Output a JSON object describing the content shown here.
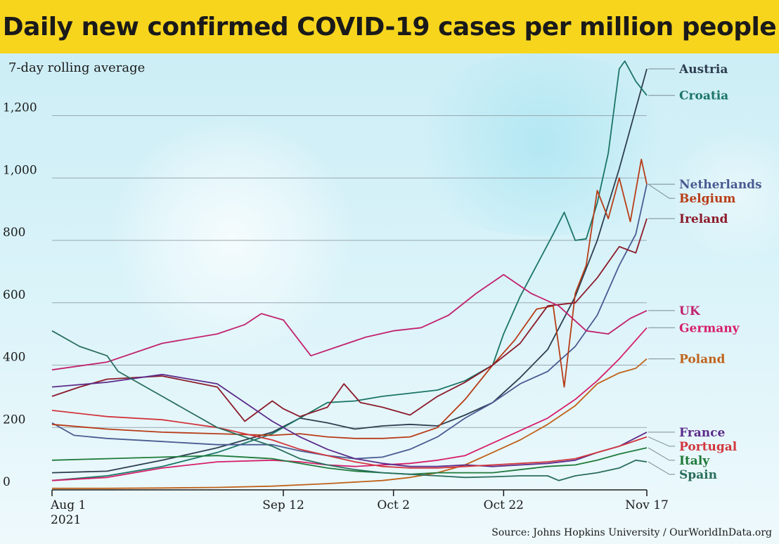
{
  "title": "Daily new confirmed COVID-19 cases per million people",
  "subtitle": "7-day rolling average",
  "source": "Source: Johns Hopkins University / OurWorldInData.org",
  "chart_data": {
    "type": "line",
    "title": "Daily new confirmed COVID-19 cases per million people",
    "subtitle": "7-day rolling average",
    "xlabel": "",
    "ylabel": "",
    "xlim": [
      "2021-08-01",
      "2021-11-17"
    ],
    "ylim": [
      0,
      1350
    ],
    "y_ticks": [
      0,
      200,
      400,
      600,
      800,
      1000,
      1200
    ],
    "y_tick_labels": [
      "0",
      "200",
      "400",
      "600",
      "800",
      "1,000",
      "1,200"
    ],
    "x_ticks": [
      {
        "date": "2021-08-01",
        "label": "Aug 1",
        "sublabel": "2021"
      },
      {
        "date": "2021-09-12",
        "label": "Sep 12",
        "sublabel": ""
      },
      {
        "date": "2021-10-02",
        "label": "Oct 2",
        "sublabel": ""
      },
      {
        "date": "2021-10-22",
        "label": "Oct 22",
        "sublabel": ""
      },
      {
        "date": "2021-11-17",
        "label": "Nov 17",
        "sublabel": ""
      }
    ],
    "grid": "horizontal",
    "legend": "right-edge labels",
    "series": [
      {
        "name": "Austria",
        "color": "#2d3e50",
        "points": [
          [
            "2021-08-01",
            55
          ],
          [
            "2021-08-11",
            60
          ],
          [
            "2021-08-21",
            95
          ],
          [
            "2021-08-31",
            135
          ],
          [
            "2021-09-10",
            185
          ],
          [
            "2021-09-15",
            230
          ],
          [
            "2021-09-20",
            215
          ],
          [
            "2021-09-25",
            195
          ],
          [
            "2021-09-30",
            205
          ],
          [
            "2021-10-05",
            210
          ],
          [
            "2021-10-10",
            205
          ],
          [
            "2021-10-15",
            240
          ],
          [
            "2021-10-20",
            280
          ],
          [
            "2021-10-25",
            360
          ],
          [
            "2021-10-30",
            450
          ],
          [
            "2021-11-04",
            620
          ],
          [
            "2021-11-08",
            800
          ],
          [
            "2021-11-12",
            1030
          ],
          [
            "2021-11-17",
            1350
          ]
        ]
      },
      {
        "name": "Croatia",
        "color": "#1b7566",
        "points": [
          [
            "2021-08-01",
            30
          ],
          [
            "2021-08-11",
            45
          ],
          [
            "2021-08-21",
            75
          ],
          [
            "2021-08-31",
            120
          ],
          [
            "2021-09-10",
            180
          ],
          [
            "2021-09-15",
            230
          ],
          [
            "2021-09-20",
            280
          ],
          [
            "2021-09-25",
            285
          ],
          [
            "2021-09-30",
            300
          ],
          [
            "2021-10-05",
            310
          ],
          [
            "2021-10-10",
            320
          ],
          [
            "2021-10-15",
            350
          ],
          [
            "2021-10-20",
            400
          ],
          [
            "2021-10-22",
            500
          ],
          [
            "2021-10-25",
            620
          ],
          [
            "2021-10-28",
            720
          ],
          [
            "2021-10-31",
            820
          ],
          [
            "2021-11-02",
            890
          ],
          [
            "2021-11-04",
            800
          ],
          [
            "2021-11-06",
            805
          ],
          [
            "2021-11-08",
            920
          ],
          [
            "2021-11-10",
            1080
          ],
          [
            "2021-11-12",
            1350
          ],
          [
            "2021-11-13",
            1375
          ],
          [
            "2021-11-15",
            1310
          ],
          [
            "2021-11-17",
            1265
          ]
        ]
      },
      {
        "name": "Netherlands",
        "color": "#4a5b92",
        "points": [
          [
            "2021-08-01",
            215
          ],
          [
            "2021-08-05",
            175
          ],
          [
            "2021-08-11",
            165
          ],
          [
            "2021-08-21",
            155
          ],
          [
            "2021-08-31",
            145
          ],
          [
            "2021-09-10",
            145
          ],
          [
            "2021-09-15",
            125
          ],
          [
            "2021-09-20",
            110
          ],
          [
            "2021-09-25",
            100
          ],
          [
            "2021-09-30",
            105
          ],
          [
            "2021-10-05",
            130
          ],
          [
            "2021-10-10",
            170
          ],
          [
            "2021-10-15",
            230
          ],
          [
            "2021-10-20",
            280
          ],
          [
            "2021-10-25",
            340
          ],
          [
            "2021-10-30",
            380
          ],
          [
            "2021-11-04",
            460
          ],
          [
            "2021-11-08",
            560
          ],
          [
            "2021-11-12",
            720
          ],
          [
            "2021-11-15",
            820
          ],
          [
            "2021-11-17",
            980
          ]
        ]
      },
      {
        "name": "Belgium",
        "color": "#b83c17",
        "points": [
          [
            "2021-08-01",
            210
          ],
          [
            "2021-08-11",
            195
          ],
          [
            "2021-08-21",
            185
          ],
          [
            "2021-08-31",
            180
          ],
          [
            "2021-09-10",
            175
          ],
          [
            "2021-09-15",
            180
          ],
          [
            "2021-09-20",
            170
          ],
          [
            "2021-09-25",
            165
          ],
          [
            "2021-09-30",
            165
          ],
          [
            "2021-10-05",
            170
          ],
          [
            "2021-10-10",
            200
          ],
          [
            "2021-10-15",
            290
          ],
          [
            "2021-10-20",
            400
          ],
          [
            "2021-10-24",
            480
          ],
          [
            "2021-10-28",
            580
          ],
          [
            "2021-10-31",
            590
          ],
          [
            "2021-11-02",
            330
          ],
          [
            "2021-11-04",
            630
          ],
          [
            "2021-11-06",
            720
          ],
          [
            "2021-11-08",
            960
          ],
          [
            "2021-11-10",
            870
          ],
          [
            "2021-11-12",
            1000
          ],
          [
            "2021-11-14",
            860
          ],
          [
            "2021-11-16",
            1060
          ],
          [
            "2021-11-17",
            980
          ]
        ]
      },
      {
        "name": "Ireland",
        "color": "#8c1a2a",
        "points": [
          [
            "2021-08-01",
            300
          ],
          [
            "2021-08-06",
            330
          ],
          [
            "2021-08-11",
            355
          ],
          [
            "2021-08-21",
            365
          ],
          [
            "2021-08-31",
            330
          ],
          [
            "2021-09-05",
            220
          ],
          [
            "2021-09-10",
            285
          ],
          [
            "2021-09-12",
            260
          ],
          [
            "2021-09-15",
            235
          ],
          [
            "2021-09-20",
            265
          ],
          [
            "2021-09-23",
            340
          ],
          [
            "2021-09-26",
            280
          ],
          [
            "2021-09-30",
            265
          ],
          [
            "2021-10-05",
            240
          ],
          [
            "2021-10-10",
            300
          ],
          [
            "2021-10-15",
            345
          ],
          [
            "2021-10-20",
            400
          ],
          [
            "2021-10-25",
            470
          ],
          [
            "2021-10-30",
            590
          ],
          [
            "2021-11-04",
            600
          ],
          [
            "2021-11-08",
            680
          ],
          [
            "2021-11-12",
            780
          ],
          [
            "2021-11-15",
            760
          ],
          [
            "2021-11-17",
            870
          ]
        ]
      },
      {
        "name": "UK",
        "color": "#c2216e",
        "points": [
          [
            "2021-08-01",
            385
          ],
          [
            "2021-08-11",
            410
          ],
          [
            "2021-08-21",
            470
          ],
          [
            "2021-08-31",
            500
          ],
          [
            "2021-09-05",
            530
          ],
          [
            "2021-09-08",
            565
          ],
          [
            "2021-09-12",
            545
          ],
          [
            "2021-09-17",
            430
          ],
          [
            "2021-09-22",
            460
          ],
          [
            "2021-09-27",
            490
          ],
          [
            "2021-10-02",
            510
          ],
          [
            "2021-10-07",
            520
          ],
          [
            "2021-10-12",
            560
          ],
          [
            "2021-10-17",
            630
          ],
          [
            "2021-10-22",
            690
          ],
          [
            "2021-10-27",
            630
          ],
          [
            "2021-11-01",
            590
          ],
          [
            "2021-11-06",
            510
          ],
          [
            "2021-11-10",
            500
          ],
          [
            "2021-11-14",
            550
          ],
          [
            "2021-11-17",
            575
          ]
        ]
      },
      {
        "name": "Germany",
        "color": "#d61f6b",
        "points": [
          [
            "2021-08-01",
            30
          ],
          [
            "2021-08-11",
            40
          ],
          [
            "2021-08-21",
            70
          ],
          [
            "2021-08-31",
            90
          ],
          [
            "2021-09-10",
            95
          ],
          [
            "2021-09-15",
            90
          ],
          [
            "2021-09-20",
            80
          ],
          [
            "2021-09-25",
            75
          ],
          [
            "2021-09-30",
            80
          ],
          [
            "2021-10-05",
            85
          ],
          [
            "2021-10-10",
            95
          ],
          [
            "2021-10-15",
            110
          ],
          [
            "2021-10-20",
            150
          ],
          [
            "2021-10-25",
            190
          ],
          [
            "2021-10-30",
            230
          ],
          [
            "2021-11-04",
            290
          ],
          [
            "2021-11-08",
            350
          ],
          [
            "2021-11-12",
            420
          ],
          [
            "2021-11-17",
            520
          ]
        ]
      },
      {
        "name": "Poland",
        "color": "#c0621a",
        "points": [
          [
            "2021-08-01",
            5
          ],
          [
            "2021-08-11",
            5
          ],
          [
            "2021-08-21",
            6
          ],
          [
            "2021-08-31",
            8
          ],
          [
            "2021-09-10",
            12
          ],
          [
            "2021-09-20",
            20
          ],
          [
            "2021-09-30",
            30
          ],
          [
            "2021-10-05",
            40
          ],
          [
            "2021-10-10",
            55
          ],
          [
            "2021-10-15",
            80
          ],
          [
            "2021-10-20",
            120
          ],
          [
            "2021-10-25",
            160
          ],
          [
            "2021-10-30",
            210
          ],
          [
            "2021-11-04",
            270
          ],
          [
            "2021-11-08",
            340
          ],
          [
            "2021-11-12",
            375
          ],
          [
            "2021-11-15",
            390
          ],
          [
            "2021-11-17",
            420
          ]
        ]
      },
      {
        "name": "France",
        "color": "#5b2b8a",
        "points": [
          [
            "2021-08-01",
            330
          ],
          [
            "2021-08-11",
            345
          ],
          [
            "2021-08-21",
            370
          ],
          [
            "2021-08-31",
            340
          ],
          [
            "2021-09-05",
            280
          ],
          [
            "2021-09-10",
            220
          ],
          [
            "2021-09-15",
            170
          ],
          [
            "2021-09-20",
            130
          ],
          [
            "2021-09-25",
            100
          ],
          [
            "2021-09-30",
            85
          ],
          [
            "2021-10-05",
            75
          ],
          [
            "2021-10-10",
            75
          ],
          [
            "2021-10-15",
            80
          ],
          [
            "2021-10-20",
            75
          ],
          [
            "2021-10-25",
            80
          ],
          [
            "2021-10-30",
            85
          ],
          [
            "2021-11-04",
            95
          ],
          [
            "2021-11-08",
            120
          ],
          [
            "2021-11-12",
            140
          ],
          [
            "2021-11-17",
            185
          ]
        ]
      },
      {
        "name": "Portugal",
        "color": "#d2363d",
        "points": [
          [
            "2021-08-01",
            255
          ],
          [
            "2021-08-11",
            235
          ],
          [
            "2021-08-21",
            225
          ],
          [
            "2021-08-31",
            200
          ],
          [
            "2021-09-05",
            180
          ],
          [
            "2021-09-10",
            160
          ],
          [
            "2021-09-15",
            130
          ],
          [
            "2021-09-20",
            110
          ],
          [
            "2021-09-25",
            90
          ],
          [
            "2021-09-30",
            75
          ],
          [
            "2021-10-05",
            70
          ],
          [
            "2021-10-10",
            70
          ],
          [
            "2021-10-15",
            75
          ],
          [
            "2021-10-20",
            80
          ],
          [
            "2021-10-25",
            85
          ],
          [
            "2021-10-30",
            90
          ],
          [
            "2021-11-04",
            100
          ],
          [
            "2021-11-08",
            120
          ],
          [
            "2021-11-12",
            140
          ],
          [
            "2021-11-17",
            170
          ]
        ]
      },
      {
        "name": "Italy",
        "color": "#1f7a3a",
        "points": [
          [
            "2021-08-01",
            95
          ],
          [
            "2021-08-11",
            100
          ],
          [
            "2021-08-21",
            105
          ],
          [
            "2021-08-31",
            110
          ],
          [
            "2021-09-10",
            100
          ],
          [
            "2021-09-15",
            85
          ],
          [
            "2021-09-20",
            70
          ],
          [
            "2021-09-25",
            60
          ],
          [
            "2021-09-30",
            55
          ],
          [
            "2021-10-05",
            50
          ],
          [
            "2021-10-10",
            55
          ],
          [
            "2021-10-15",
            55
          ],
          [
            "2021-10-20",
            55
          ],
          [
            "2021-10-25",
            65
          ],
          [
            "2021-10-30",
            75
          ],
          [
            "2021-11-04",
            80
          ],
          [
            "2021-11-08",
            95
          ],
          [
            "2021-11-12",
            115
          ],
          [
            "2021-11-17",
            135
          ]
        ]
      },
      {
        "name": "Spain",
        "color": "#2a6e5c",
        "points": [
          [
            "2021-08-01",
            510
          ],
          [
            "2021-08-06",
            460
          ],
          [
            "2021-08-11",
            430
          ],
          [
            "2021-08-13",
            380
          ],
          [
            "2021-08-21",
            300
          ],
          [
            "2021-08-26",
            250
          ],
          [
            "2021-08-31",
            200
          ],
          [
            "2021-09-05",
            170
          ],
          [
            "2021-09-10",
            140
          ],
          [
            "2021-09-15",
            100
          ],
          [
            "2021-09-20",
            80
          ],
          [
            "2021-09-25",
            65
          ],
          [
            "2021-09-30",
            55
          ],
          [
            "2021-10-05",
            50
          ],
          [
            "2021-10-10",
            45
          ],
          [
            "2021-10-15",
            40
          ],
          [
            "2021-10-20",
            42
          ],
          [
            "2021-10-25",
            45
          ],
          [
            "2021-10-30",
            45
          ],
          [
            "2021-11-01",
            30
          ],
          [
            "2021-11-04",
            45
          ],
          [
            "2021-11-08",
            55
          ],
          [
            "2021-11-12",
            70
          ],
          [
            "2021-11-15",
            95
          ],
          [
            "2021-11-17",
            90
          ]
        ]
      }
    ]
  }
}
